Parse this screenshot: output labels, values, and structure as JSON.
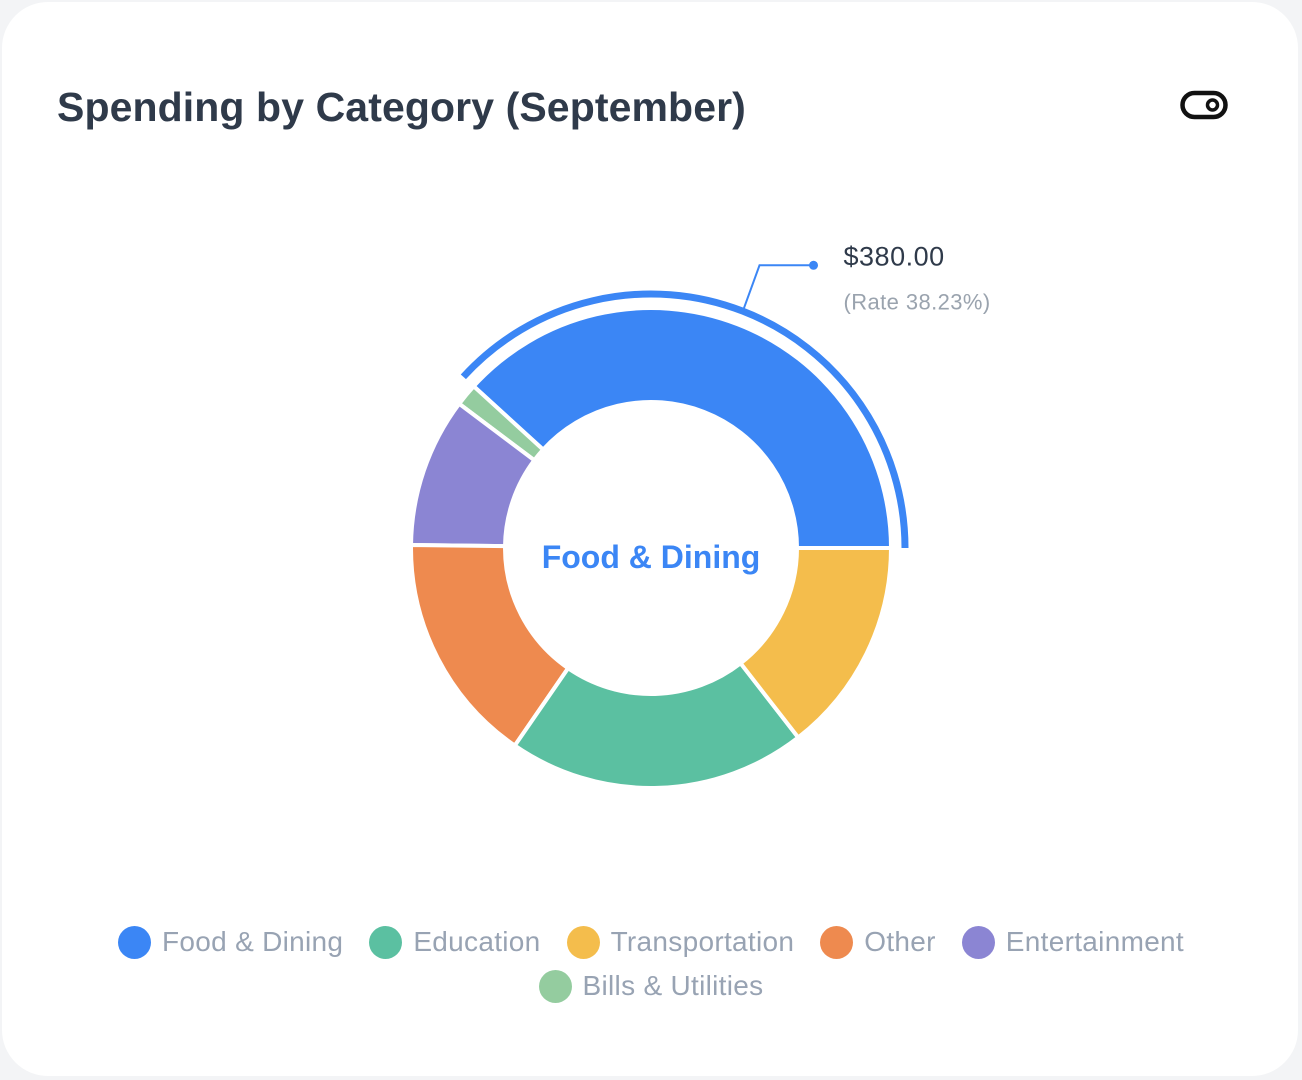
{
  "card": {
    "title": "Spending by Category (September)",
    "toggle_icon": "toggle-switch-icon"
  },
  "chart_data": {
    "type": "pie",
    "title": "Spending by Category (September)",
    "categories": [
      "Food & Dining",
      "Bills & Utilities",
      "Entertainment",
      "Other",
      "Education",
      "Transportation"
    ],
    "values": [
      380,
      15,
      100,
      155,
      200,
      144
    ],
    "center_label": "Food & Dining",
    "highlighted": "Food & Dining",
    "callout": {
      "value": "$380.00",
      "rate": "(Rate 38.23%)"
    },
    "legend": [
      "Food & Dining",
      "Education",
      "Transportation",
      "Other",
      "Entertainment",
      "Bills & Utilities"
    ],
    "legend_position": "bottom"
  },
  "colors": {
    "Food & Dining": "#3b86f5",
    "Bills & Utilities": "#94cc9f",
    "Entertainment": "#8b85d3",
    "Other": "#ee8a4f",
    "Education": "#5bc0a1",
    "Transportation": "#f4bd4c",
    "title": "#2f3a4a",
    "legend_text": "#98a3b3",
    "callout_value": "#2f3a4a",
    "callout_rate": "#9aa3ae"
  }
}
